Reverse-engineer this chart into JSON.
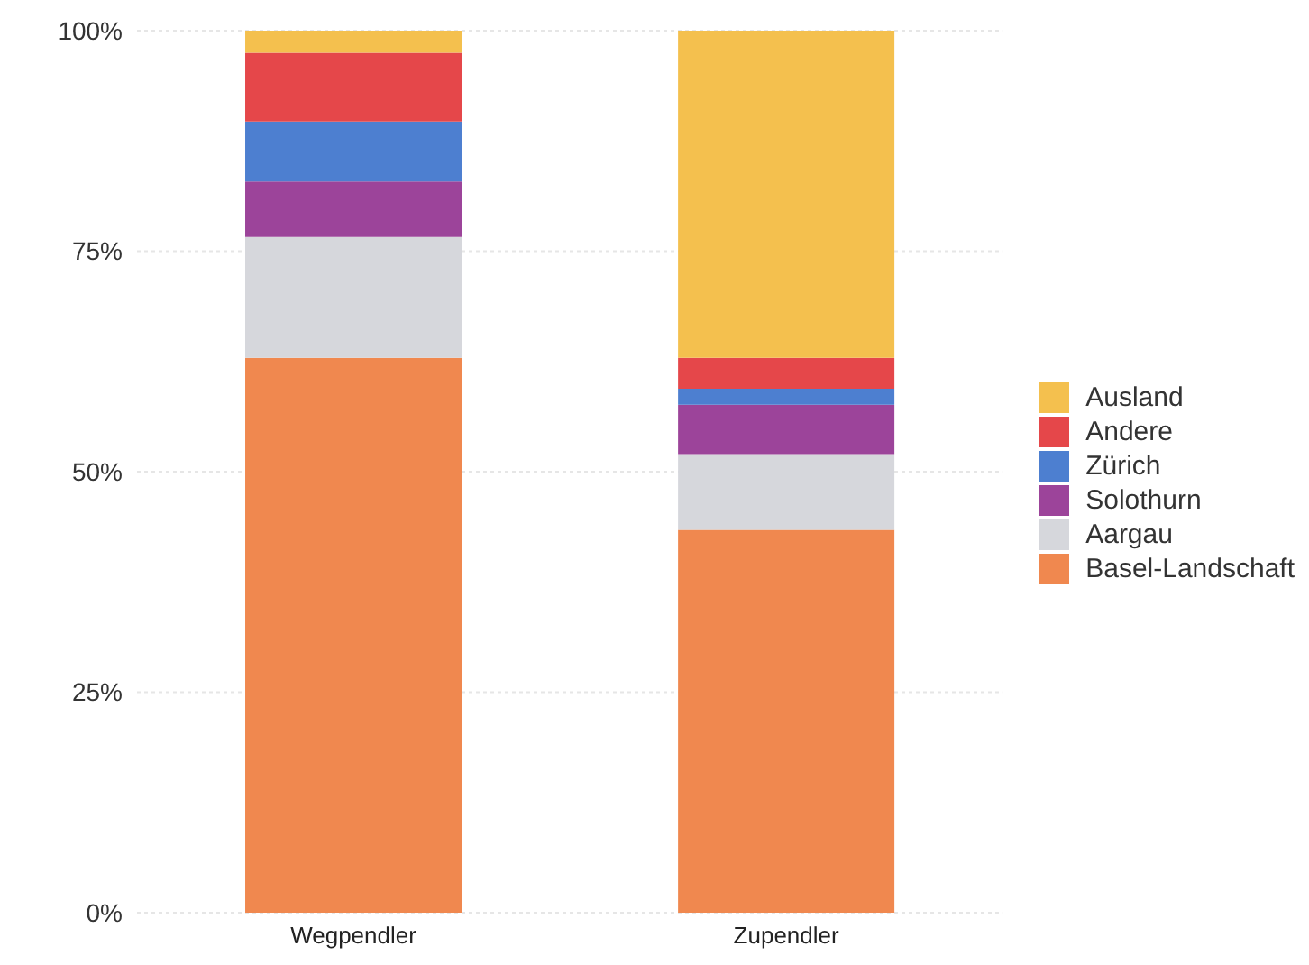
{
  "chart_data": {
    "type": "bar",
    "stacked": true,
    "categories": [
      "Wegpendler",
      "Zupendler"
    ],
    "series": [
      {
        "name": "Basel-Landschaft",
        "color": "#f0884f",
        "values": [
          62.9,
          43.4
        ]
      },
      {
        "name": "Aargau",
        "color": "#d6d7dc",
        "values": [
          13.7,
          8.6
        ]
      },
      {
        "name": "Solothurn",
        "color": "#9c449a",
        "values": [
          6.3,
          5.6
        ]
      },
      {
        "name": "Zürich",
        "color": "#4d7fd0",
        "values": [
          6.8,
          1.8
        ]
      },
      {
        "name": "Andere",
        "color": "#e5474a",
        "values": [
          7.8,
          3.5
        ]
      },
      {
        "name": "Ausland",
        "color": "#f4c04e",
        "values": [
          2.5,
          37.1
        ]
      }
    ],
    "ylim": [
      0,
      100
    ],
    "yticks": [
      {
        "value": 0,
        "label": "0%"
      },
      {
        "value": 25,
        "label": "25%"
      },
      {
        "value": 50,
        "label": "50%"
      },
      {
        "value": 75,
        "label": "75%"
      },
      {
        "value": 100,
        "label": "100%"
      }
    ],
    "grid": "y",
    "legend": "right"
  }
}
